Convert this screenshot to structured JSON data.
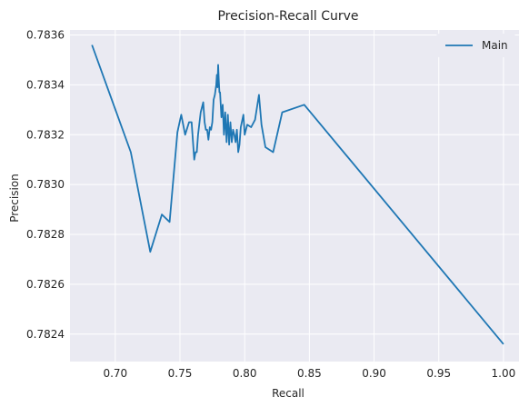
{
  "chart_data": {
    "type": "line",
    "title": "Precision-Recall Curve",
    "xlabel": "Recall",
    "ylabel": "Precision",
    "xlim": [
      0.665,
      1.012
    ],
    "ylim": [
      0.78229,
      0.78362
    ],
    "xticks": [
      0.7,
      0.75,
      0.8,
      0.85,
      0.9,
      0.95,
      1.0
    ],
    "xtick_labels": [
      "0.70",
      "0.75",
      "0.80",
      "0.85",
      "0.90",
      "0.95",
      "1.00"
    ],
    "yticks": [
      0.7824,
      0.7826,
      0.7828,
      0.783,
      0.7832,
      0.7834,
      0.7836
    ],
    "ytick_labels": [
      "0.7824",
      "0.7826",
      "0.7828",
      "0.7830",
      "0.7832",
      "0.7834",
      "0.7836"
    ],
    "grid": true,
    "legend_position": "top-right",
    "series": [
      {
        "name": "Main",
        "color": "#1f77b4",
        "x": [
          0.682,
          0.712,
          0.727,
          0.736,
          0.742,
          0.748,
          0.751,
          0.754,
          0.757,
          0.759,
          0.761,
          0.762,
          0.763,
          0.764,
          0.766,
          0.768,
          0.769,
          0.77,
          0.771,
          0.772,
          0.773,
          0.774,
          0.775,
          0.776,
          0.777,
          0.778,
          0.7785,
          0.779,
          0.7795,
          0.78,
          0.7805,
          0.781,
          0.782,
          0.783,
          0.784,
          0.785,
          0.786,
          0.787,
          0.788,
          0.789,
          0.79,
          0.791,
          0.792,
          0.793,
          0.794,
          0.795,
          0.796,
          0.797,
          0.799,
          0.8,
          0.802,
          0.805,
          0.808,
          0.811,
          0.813,
          0.816,
          0.822,
          0.829,
          0.846,
          1.0
        ],
        "y": [
          0.78356,
          0.78313,
          0.78273,
          0.78288,
          0.78285,
          0.78321,
          0.78328,
          0.7832,
          0.78325,
          0.78325,
          0.7831,
          0.78313,
          0.78313,
          0.7832,
          0.78329,
          0.78333,
          0.78325,
          0.78322,
          0.78322,
          0.78318,
          0.78323,
          0.78322,
          0.78325,
          0.78334,
          0.78336,
          0.7834,
          0.78344,
          0.78339,
          0.78348,
          0.78342,
          0.78337,
          0.78337,
          0.78327,
          0.78332,
          0.7832,
          0.78329,
          0.78317,
          0.78328,
          0.78316,
          0.78325,
          0.78317,
          0.78322,
          0.7832,
          0.78317,
          0.78322,
          0.78313,
          0.78316,
          0.78323,
          0.78328,
          0.7832,
          0.78324,
          0.78323,
          0.78326,
          0.78336,
          0.78324,
          0.78315,
          0.78313,
          0.78329,
          0.78332,
          0.78236
        ]
      }
    ]
  }
}
